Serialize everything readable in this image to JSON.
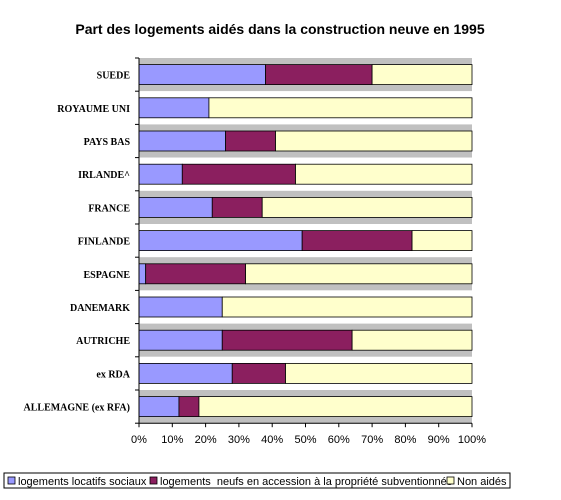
{
  "chart_data": {
    "type": "bar",
    "orientation": "horizontal",
    "stacked": true,
    "title": "Part des logements aidés dans la construction neuve en 1995",
    "categories": [
      "SUEDE",
      "ROYAUME UNI",
      "PAYS BAS",
      "IRLANDE^",
      "FRANCE",
      "FINLANDE",
      "ESPAGNE",
      "DANEMARK",
      "AUTRICHE",
      "ex RDA",
      "ALLEMAGNE (ex RFA)"
    ],
    "series": [
      {
        "name": "logements locatifs sociaux",
        "color": "#9999ff",
        "values": [
          38,
          21,
          26,
          13,
          22,
          49,
          2,
          25,
          25,
          28,
          12
        ]
      },
      {
        "name": "logements  neufs en accession à la propriété subventionnés",
        "color": "#8b1f5f",
        "values": [
          32,
          0,
          15,
          34,
          15,
          33,
          30,
          0,
          39,
          16,
          6
        ]
      },
      {
        "name": "Non aidés",
        "color": "#ffffcc",
        "values": [
          30,
          79,
          59,
          53,
          63,
          18,
          68,
          75,
          36,
          56,
          82
        ]
      }
    ],
    "x_ticks": [
      "0%",
      "10%",
      "20%",
      "30%",
      "40%",
      "50%",
      "60%",
      "70%",
      "80%",
      "90%",
      "100%"
    ],
    "xlim": [
      0,
      100
    ],
    "grid": false,
    "legend_position": "bottom",
    "plot_background": "#c0c0c0"
  }
}
